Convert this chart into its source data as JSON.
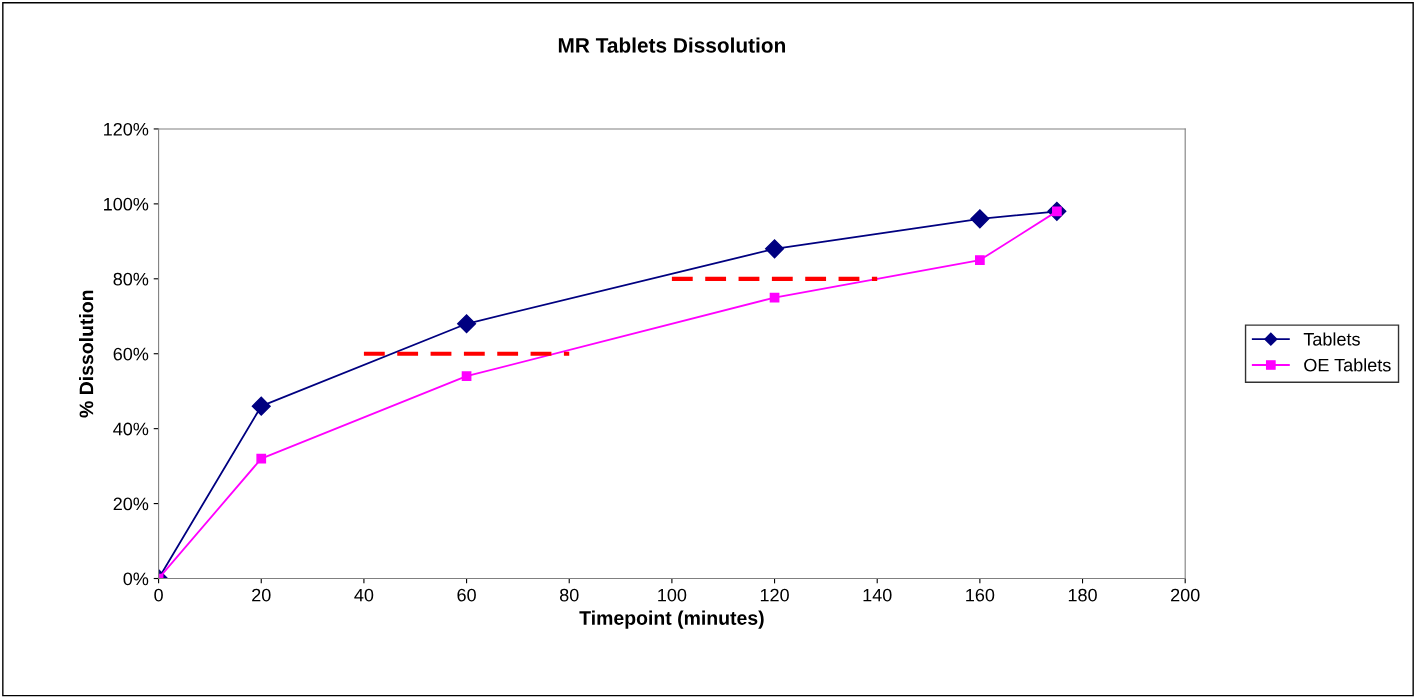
{
  "chart_data": {
    "type": "line",
    "title": "MR Tablets Dissolution",
    "xlabel": "Timepoint (minutes)",
    "ylabel": "% Dissolution",
    "x": [
      0,
      20,
      60,
      120,
      160,
      175
    ],
    "series": [
      {
        "name": "Tablets",
        "color": "#000080",
        "values": [
          0,
          46,
          68,
          88,
          96,
          98
        ],
        "marker": "diamond"
      },
      {
        "name": "OE Tablets",
        "color": "#ff00ff",
        "values": [
          0,
          32,
          54,
          75,
          85,
          98
        ],
        "marker": "square"
      },
      {
        "type": "line",
        "x": [
          40,
          80
        ],
        "values": [
          60,
          60
        ],
        "color": "#ff0000",
        "line_style": "dashed",
        "marker": "none"
      },
      {
        "type": "line",
        "x": [
          100,
          140
        ],
        "values": [
          80,
          80
        ],
        "color": "#ff0000",
        "line_style": "dashed",
        "marker": "none"
      }
    ],
    "xlim": [
      0,
      200
    ],
    "xticks": [
      0,
      20,
      40,
      60,
      80,
      100,
      120,
      140,
      160,
      180,
      200
    ],
    "ylim": [
      0,
      120
    ],
    "yticks": [
      {
        "value": 0,
        "label": "0%"
      },
      {
        "value": 20,
        "label": "20%"
      },
      {
        "value": 40,
        "label": "40%"
      },
      {
        "value": 60,
        "label": "60%"
      },
      {
        "value": 80,
        "label": "80%"
      },
      {
        "value": 100,
        "label": "100%"
      },
      {
        "value": 120,
        "label": "120%"
      }
    ],
    "grid": false,
    "legend": "right",
    "line_style": "solid"
  }
}
